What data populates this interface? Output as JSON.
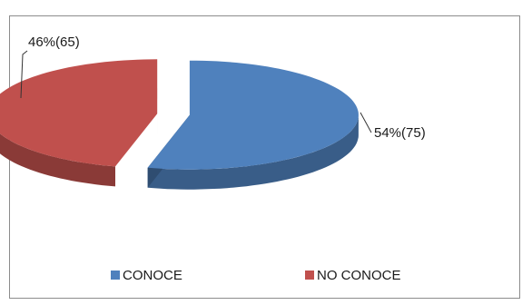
{
  "chart_data": {
    "type": "pie",
    "style": "3d-exploded",
    "categories": [
      "CONOCE",
      "NO CONOCE"
    ],
    "values": [
      54,
      46
    ],
    "counts": [
      75,
      65
    ],
    "data_labels": [
      "54%(75)",
      "46%(65)"
    ],
    "colors": [
      "#4f81bd",
      "#c0504d"
    ],
    "legend": {
      "placement": "bottom",
      "items": [
        {
          "label": "CONOCE",
          "color": "#4f81bd"
        },
        {
          "label": "NO CONOCE",
          "color": "#c0504d"
        }
      ]
    }
  }
}
